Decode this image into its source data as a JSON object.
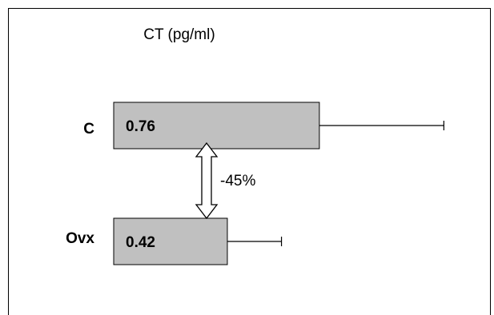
{
  "chart_data": {
    "type": "bar",
    "orientation": "horizontal",
    "title": "CT (pg/ml)",
    "categories": [
      "C",
      "Ovx"
    ],
    "values": [
      0.76,
      0.42
    ],
    "error_plus": [
      0.46,
      0.2
    ],
    "data_labels": [
      "0.76",
      "0.42"
    ],
    "annotation": "-45%",
    "xlim": [
      0,
      1.3
    ],
    "grid": false,
    "legend": "none",
    "bar_color": "#c0c0c0",
    "axes_visible": false
  }
}
